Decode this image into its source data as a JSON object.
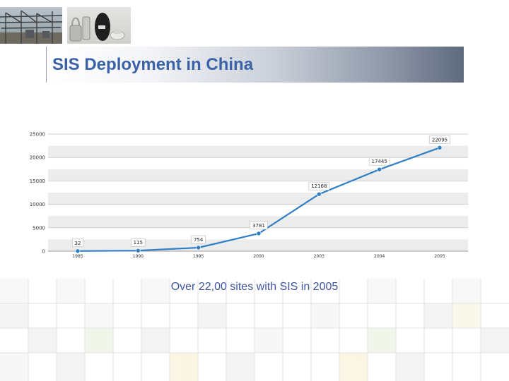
{
  "slide": {
    "title": "SIS Deployment in China",
    "caption": "Over 22,00 sites with SIS in 2005"
  },
  "images": [
    {
      "name": "substation-photo",
      "description": "electrical substation"
    },
    {
      "name": "equipment-photo",
      "description": "SIS devices"
    }
  ],
  "colors": {
    "title": "#3b62a8",
    "caption": "#3f56a0",
    "line": "#2f7fc6",
    "band": "#ececec"
  },
  "chart_data": {
    "type": "line",
    "title": "",
    "xlabel": "",
    "ylabel": "",
    "categories": [
      "1985",
      "1990",
      "1995",
      "2000",
      "2003",
      "2004",
      "2005"
    ],
    "series": [
      {
        "values": [
          32,
          115,
          754,
          3781,
          12168,
          17445,
          22095
        ]
      }
    ],
    "data_labels": [
      "32",
      "115",
      "754",
      "3781",
      "12168",
      "17445",
      "22095"
    ],
    "ylim": [
      0,
      25000
    ],
    "yticks": [
      0,
      5000,
      10000,
      15000,
      20000,
      25000
    ],
    "ytick_labels": [
      "0",
      "5000",
      "10000",
      "15000",
      "20000",
      "25000"
    ],
    "grid": true,
    "legend": "none"
  }
}
